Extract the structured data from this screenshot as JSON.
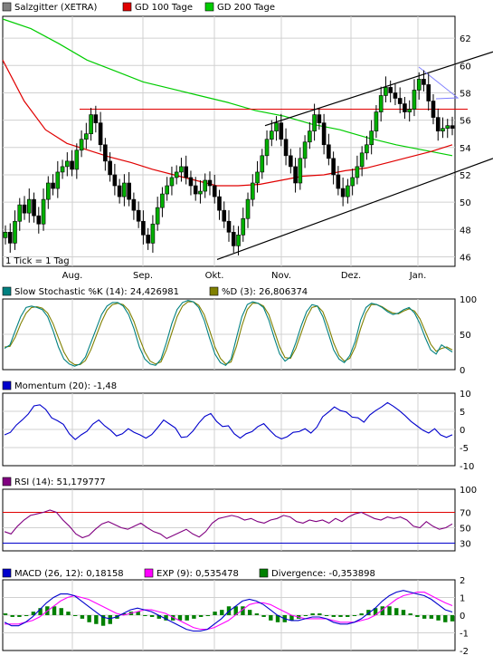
{
  "chart_data": [
    {
      "type": "candlestick",
      "legend": [
        {
          "name": "Salzgitter (XETRA)",
          "color": "#808080"
        },
        {
          "name": "GD 100 Tage",
          "color": "#e00000"
        },
        {
          "name": "GD 200 Tage",
          "color": "#00cc00"
        }
      ],
      "note": "1 Tick = 1 Tag",
      "x_ticks": [
        "Aug.",
        "Sep.",
        "Okt.",
        "Nov.",
        "Dez.",
        "Jan."
      ],
      "y_ticks": [
        46,
        48,
        50,
        52,
        54,
        56,
        58,
        60,
        62
      ],
      "ylim": [
        45.3,
        63.6
      ],
      "grid": true,
      "series": [
        {
          "name": "Salzgitter (XETRA)",
          "kind": "close",
          "values": [
            47.8,
            47.0,
            48.6,
            49.8,
            49.2,
            50.2,
            49.0,
            48.4,
            50.2,
            51.4,
            51.0,
            52.2,
            52.6,
            53.0,
            52.4,
            53.8,
            54.6,
            55.0,
            56.4,
            55.8,
            54.2,
            53.0,
            52.0,
            51.2,
            50.4,
            51.4,
            50.2,
            49.4,
            48.6,
            47.6,
            47.0,
            48.4,
            49.6,
            50.6,
            51.2,
            51.8,
            52.2,
            52.6,
            51.8,
            51.2,
            50.6,
            50.8,
            51.6,
            51.2,
            50.4,
            49.4,
            48.6,
            47.8,
            46.8,
            47.6,
            48.8,
            50.2,
            51.4,
            52.2,
            53.4,
            54.6,
            55.2,
            55.8,
            54.6,
            53.4,
            52.6,
            51.4,
            53.2,
            54.4,
            55.2,
            56.4,
            55.8,
            54.2,
            53.2,
            52.0,
            51.0,
            50.4,
            51.2,
            51.8,
            52.6,
            53.6,
            54.2,
            55.2,
            56.6,
            57.8,
            58.4,
            58.0,
            57.6,
            57.2,
            56.6,
            56.8,
            58.2,
            59.0,
            58.6,
            57.4,
            56.2,
            55.2,
            55.4,
            55.6,
            55.4
          ]
        },
        {
          "name": "GD 100 Tage",
          "kind": "line",
          "color": "#e00000",
          "values": [
            60.4,
            57.4,
            55.3,
            54.3,
            53.8,
            53.3,
            52.9,
            52.4,
            52.0,
            51.6,
            51.2,
            51.2,
            51.3,
            51.6,
            51.9,
            52.0,
            52.3,
            52.5,
            52.9,
            53.3,
            53.7,
            54.2
          ]
        },
        {
          "name": "GD 200 Tage",
          "kind": "line",
          "color": "#00cc00",
          "values": [
            63.4,
            62.7,
            61.6,
            60.4,
            59.6,
            58.8,
            58.3,
            57.8,
            57.3,
            56.7,
            56.3,
            55.7,
            55.3,
            54.7,
            54.2,
            53.8,
            53.4
          ]
        },
        {
          "name": "Resistance",
          "kind": "line",
          "color": "#e00000",
          "values": [
            56.8,
            56.8
          ]
        },
        {
          "name": "Upper trend",
          "kind": "line",
          "color": "#000000",
          "values": [
            55.6,
            61.0
          ]
        },
        {
          "name": "Lower trend",
          "kind": "line",
          "color": "#000000",
          "values": [
            45.8,
            53.2
          ]
        }
      ]
    },
    {
      "type": "line",
      "legend": [
        {
          "name": "Slow Stochastic %K (14): 24,426981",
          "color": "#008080"
        },
        {
          "name": "%D (3): 26,806374",
          "color": "#808000"
        }
      ],
      "y_ticks": [
        0,
        50,
        100
      ],
      "ylim": [
        0,
        100
      ],
      "series": [
        {
          "name": "%K",
          "values": [
            30,
            35,
            55,
            75,
            88,
            90,
            88,
            85,
            75,
            55,
            32,
            15,
            8,
            5,
            8,
            18,
            38,
            58,
            78,
            90,
            95,
            95,
            90,
            78,
            58,
            32,
            15,
            8,
            6,
            15,
            38,
            65,
            85,
            95,
            98,
            96,
            88,
            70,
            45,
            22,
            10,
            6,
            15,
            45,
            75,
            92,
            96,
            94,
            88,
            70,
            45,
            22,
            12,
            18,
            38,
            62,
            82,
            92,
            90,
            75,
            52,
            28,
            15,
            10,
            20,
            40,
            70,
            88,
            94,
            92,
            88,
            82,
            78,
            80,
            85,
            88,
            80,
            65,
            45,
            28,
            22,
            35,
            30,
            25
          ]
        },
        {
          "name": "%D",
          "values": [
            32,
            33,
            46,
            65,
            80,
            88,
            89,
            87,
            80,
            65,
            45,
            25,
            12,
            7,
            7,
            13,
            28,
            48,
            68,
            84,
            92,
            94,
            92,
            84,
            68,
            45,
            25,
            12,
            8,
            11,
            28,
            52,
            75,
            90,
            96,
            96,
            91,
            78,
            56,
            32,
            16,
            8,
            11,
            33,
            62,
            85,
            94,
            94,
            90,
            78,
            55,
            32,
            17,
            16,
            30,
            52,
            74,
            88,
            90,
            82,
            62,
            38,
            20,
            12,
            16,
            32,
            58,
            80,
            92,
            92,
            89,
            84,
            80,
            79,
            83,
            86,
            83,
            72,
            54,
            36,
            26,
            30,
            32,
            28
          ]
        }
      ]
    },
    {
      "type": "line",
      "legend": [
        {
          "name": "Momentum (20): -1,48",
          "color": "#0000cc"
        }
      ],
      "y_ticks": [
        -10,
        -5,
        0,
        5,
        10
      ],
      "ylim": [
        -10,
        10
      ],
      "series": [
        {
          "name": "Momentum",
          "values": [
            -1.5,
            -0.8,
            1.2,
            2.6,
            4.2,
            6.5,
            6.8,
            5.5,
            3.2,
            2.4,
            1.4,
            -1.2,
            -2.8,
            -1.5,
            -0.5,
            1.5,
            2.6,
            1.0,
            -0.2,
            -1.8,
            -1.2,
            0.2,
            -0.8,
            -1.5,
            -2.4,
            -1.4,
            0.5,
            2.6,
            1.5,
            0.4,
            -2.2,
            -2.0,
            -0.4,
            1.8,
            3.6,
            4.4,
            2.2,
            0.8,
            1.0,
            -1.2,
            -2.4,
            -1.2,
            -0.6,
            0.8,
            1.6,
            -0.2,
            -1.8,
            -2.6,
            -2.0,
            -0.8,
            -0.6,
            0.2,
            -1.0,
            0.6,
            3.5,
            4.8,
            6.2,
            5.2,
            4.8,
            3.4,
            3.2,
            2.0,
            4.0,
            5.2,
            6.2,
            7.4,
            6.4,
            5.2,
            3.8,
            2.2,
            1.0,
            -0.2,
            -1.0,
            0.2,
            -1.5,
            -2.2,
            -1.48
          ]
        }
      ]
    },
    {
      "type": "line",
      "legend": [
        {
          "name": "RSI (14): 51,179777",
          "color": "#800080"
        }
      ],
      "y_ticks": [
        30,
        50,
        70,
        100
      ],
      "ylim": [
        20,
        100
      ],
      "series": [
        {
          "name": "RSI",
          "values": [
            45,
            42,
            52,
            60,
            66,
            68,
            70,
            73,
            70,
            60,
            52,
            42,
            37,
            40,
            48,
            55,
            58,
            54,
            50,
            48,
            52,
            56,
            50,
            45,
            42,
            36,
            40,
            44,
            48,
            42,
            38,
            45,
            56,
            62,
            64,
            66,
            64,
            60,
            62,
            58,
            56,
            60,
            62,
            66,
            64,
            58,
            56,
            60,
            58,
            60,
            56,
            62,
            58,
            64,
            68,
            70,
            66,
            62,
            60,
            64,
            62,
            64,
            60,
            52,
            50,
            58,
            52,
            48,
            50,
            55
          ]
        },
        {
          "name": "Upper bound",
          "values": [
            70,
            70
          ],
          "color": "#e00000"
        },
        {
          "name": "Lower bound",
          "values": [
            30,
            30
          ],
          "color": "#0000cc"
        }
      ]
    },
    {
      "type": "bar+line",
      "legend": [
        {
          "name": "MACD (26, 12): 0,18158",
          "color": "#0000cc"
        },
        {
          "name": "EXP (9): 0,535478",
          "color": "#ff00ff"
        },
        {
          "name": "Divergence: -0,353898",
          "color": "#008000"
        }
      ],
      "y_ticks": [
        -2,
        -1,
        0,
        1,
        2
      ],
      "ylim": [
        -2,
        2
      ],
      "series": [
        {
          "name": "MACD",
          "values": [
            -0.4,
            -0.6,
            -0.6,
            -0.4,
            -0.1,
            0.3,
            0.7,
            1.0,
            1.2,
            1.2,
            1.1,
            0.8,
            0.5,
            0.2,
            -0.1,
            -0.2,
            -0.1,
            0.1,
            0.3,
            0.4,
            0.3,
            0.2,
            0.0,
            -0.2,
            -0.4,
            -0.6,
            -0.8,
            -0.9,
            -0.9,
            -0.8,
            -0.5,
            -0.2,
            0.2,
            0.5,
            0.8,
            0.9,
            0.8,
            0.6,
            0.3,
            0.0,
            -0.2,
            -0.3,
            -0.3,
            -0.2,
            -0.1,
            -0.1,
            -0.2,
            -0.4,
            -0.5,
            -0.5,
            -0.4,
            -0.2,
            0.1,
            0.4,
            0.8,
            1.1,
            1.3,
            1.4,
            1.3,
            1.2,
            1.1,
            0.9,
            0.6,
            0.3,
            0.18
          ]
        },
        {
          "name": "EXP",
          "values": [
            -0.5,
            -0.5,
            -0.5,
            -0.4,
            -0.3,
            -0.1,
            0.2,
            0.5,
            0.8,
            1.0,
            1.1,
            1.0,
            0.9,
            0.7,
            0.5,
            0.3,
            0.1,
            0.0,
            0.1,
            0.2,
            0.3,
            0.3,
            0.2,
            0.1,
            -0.1,
            -0.3,
            -0.5,
            -0.7,
            -0.8,
            -0.8,
            -0.7,
            -0.5,
            -0.3,
            0.0,
            0.3,
            0.6,
            0.7,
            0.7,
            0.6,
            0.4,
            0.2,
            0.0,
            -0.1,
            -0.2,
            -0.2,
            -0.2,
            -0.2,
            -0.3,
            -0.4,
            -0.4,
            -0.4,
            -0.3,
            -0.2,
            0.0,
            0.3,
            0.6,
            0.9,
            1.1,
            1.2,
            1.3,
            1.3,
            1.1,
            0.9,
            0.7,
            0.54
          ]
        },
        {
          "name": "Divergence",
          "kind": "bar",
          "values": [
            0.1,
            -0.1,
            -0.1,
            0.0,
            0.2,
            0.4,
            0.5,
            0.5,
            0.4,
            0.2,
            0.0,
            -0.2,
            -0.4,
            -0.5,
            -0.6,
            -0.5,
            -0.2,
            0.1,
            0.2,
            0.2,
            0.0,
            -0.1,
            -0.2,
            -0.3,
            -0.3,
            -0.3,
            -0.3,
            -0.2,
            -0.1,
            0.0,
            0.2,
            0.3,
            0.5,
            0.5,
            0.5,
            0.3,
            0.1,
            -0.1,
            -0.3,
            -0.4,
            -0.4,
            -0.3,
            -0.2,
            0.0,
            0.1,
            0.1,
            0.0,
            -0.1,
            -0.1,
            -0.1,
            0.0,
            0.1,
            0.3,
            0.4,
            0.5,
            0.5,
            0.4,
            0.3,
            0.1,
            -0.1,
            -0.2,
            -0.2,
            -0.3,
            -0.4,
            -0.35
          ]
        }
      ]
    }
  ]
}
